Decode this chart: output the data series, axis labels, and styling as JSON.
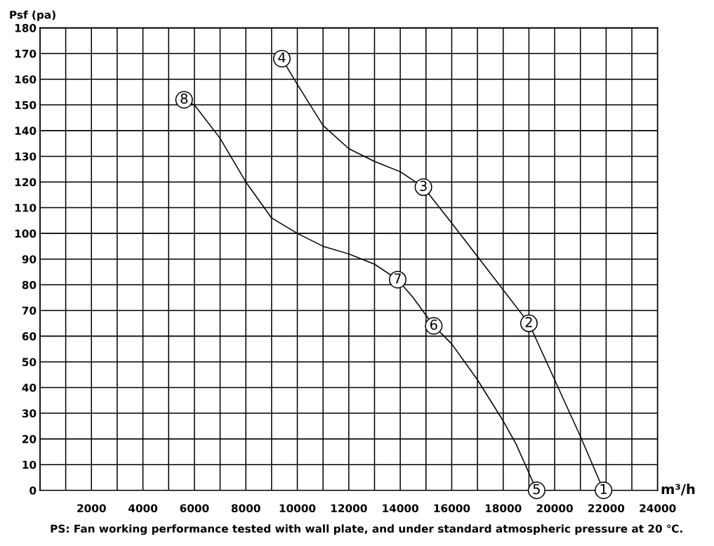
{
  "chart_data": {
    "type": "line",
    "xlabel": "m³/h",
    "ylabel": "Psf (pa)",
    "series": [
      {
        "color": "#000000",
        "x": [
          9400,
          10000,
          11000,
          12000,
          13000,
          14000,
          14900,
          16000,
          17000,
          18000,
          19000,
          20000,
          21000,
          21900
        ],
        "values": [
          168,
          158,
          142,
          133,
          128,
          124,
          118,
          104,
          91,
          78,
          65,
          43,
          21,
          0
        ]
      },
      {
        "color": "#000000",
        "x": [
          5600,
          6000,
          7000,
          8000,
          9000,
          10000,
          11000,
          12000,
          13000,
          13900,
          14500,
          15300,
          16000,
          17000,
          18000,
          18500,
          19300
        ],
        "values": [
          152,
          150,
          137,
          120,
          106,
          100,
          95,
          92,
          88,
          82,
          75,
          64,
          57,
          43,
          27,
          18,
          0
        ]
      }
    ],
    "xlim": [
      0,
      24000
    ],
    "xticks": [
      {
        "value": 0,
        "label": null
      },
      {
        "value": 1000,
        "label": null
      },
      2000,
      {
        "value": 3000,
        "label": null
      },
      4000,
      {
        "value": 5000,
        "label": null
      },
      6000,
      {
        "value": 7000,
        "label": null
      },
      8000,
      {
        "value": 9000,
        "label": null
      },
      10000,
      {
        "value": 11000,
        "label": null
      },
      12000,
      {
        "value": 13000,
        "label": null
      },
      14000,
      {
        "value": 15000,
        "label": null
      },
      16000,
      {
        "value": 17000,
        "label": null
      },
      18000,
      {
        "value": 19000,
        "label": null
      },
      20000,
      {
        "value": 21000,
        "label": null
      },
      22000,
      {
        "value": 23000,
        "label": null
      },
      24000
    ],
    "ylim": [
      0,
      180
    ],
    "yticks": [
      0,
      10,
      20,
      30,
      40,
      50,
      60,
      70,
      80,
      90,
      100,
      110,
      120,
      130,
      140,
      150,
      160,
      170,
      180
    ],
    "grid": true,
    "marker": "none",
    "line_style": "solid",
    "annotations": [
      {
        "text": "1",
        "x": 21900,
        "y": 0
      },
      {
        "text": "2",
        "x": 19000,
        "y": 65
      },
      {
        "text": "3",
        "x": 14900,
        "y": 118
      },
      {
        "text": "4",
        "x": 9400,
        "y": 168
      },
      {
        "text": "5",
        "x": 19300,
        "y": 0
      },
      {
        "text": "6",
        "x": 15300,
        "y": 64
      },
      {
        "text": "7",
        "x": 13900,
        "y": 82
      },
      {
        "text": "8",
        "x": 5600,
        "y": 152
      },
      "PS: Fan working performance tested with wall plate, and under standard atmospheric pressure at 20 ℃."
    ]
  }
}
